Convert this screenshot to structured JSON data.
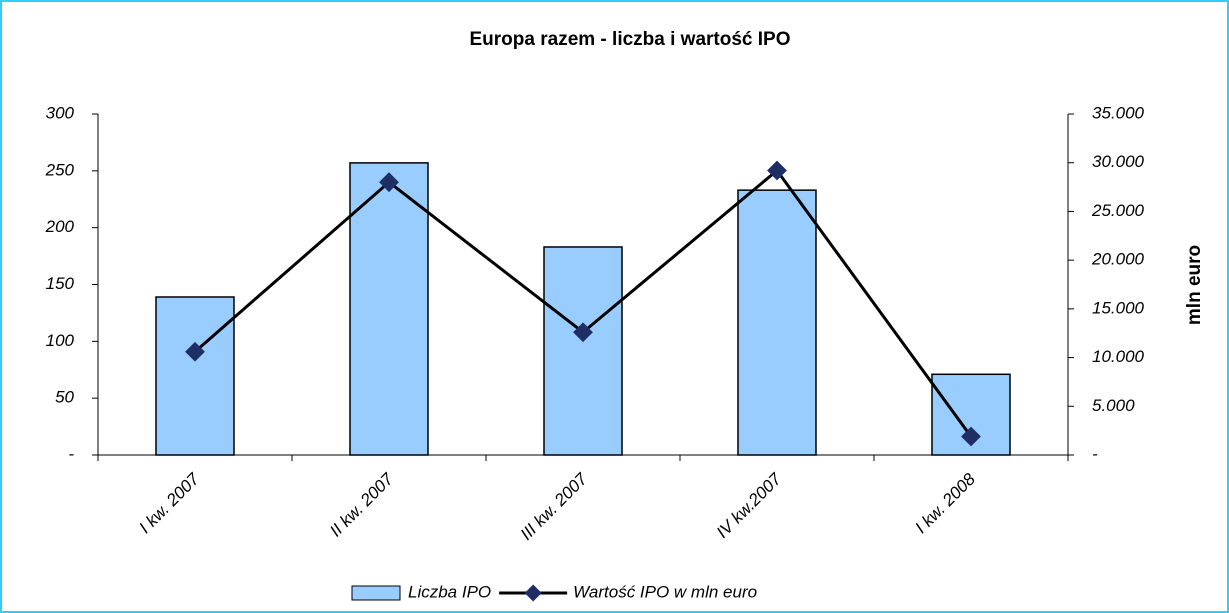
{
  "chart_data": {
    "type": "bar",
    "title": "Europa razem - liczba i wartość IPO",
    "y2label": "mln euro",
    "categories": [
      "I kw. 2007",
      "II kw. 2007",
      "III kw. 2007",
      "IV kw.2007",
      "I kw. 2008"
    ],
    "series": [
      {
        "name": "Liczba IPO",
        "type": "bar",
        "color": "#99ccff",
        "values": [
          139,
          257,
          183,
          233,
          71
        ]
      },
      {
        "name": "Wartość IPO w mln euro",
        "type": "line",
        "axis": "y2",
        "color": "#000000",
        "marker_color": "#1f2f66",
        "values": [
          10600,
          28000,
          12600,
          29200,
          1900
        ]
      }
    ],
    "ylim": [
      0,
      300
    ],
    "yticks": [
      {
        "value": 0,
        "label": "-"
      },
      50,
      100,
      150,
      200,
      250,
      300
    ],
    "y2lim": [
      0,
      35000
    ],
    "y2ticks": [
      {
        "value": 0,
        "label": "-"
      },
      {
        "value": 5000,
        "label": "5.000"
      },
      {
        "value": 10000,
        "label": "10.000"
      },
      {
        "value": 15000,
        "label": "15.000"
      },
      {
        "value": 20000,
        "label": "20.000"
      },
      {
        "value": 25000,
        "label": "25.000"
      },
      {
        "value": 30000,
        "label": "30.000"
      },
      {
        "value": 35000,
        "label": "35.000"
      }
    ],
    "grid": false,
    "legend": "bottom"
  }
}
